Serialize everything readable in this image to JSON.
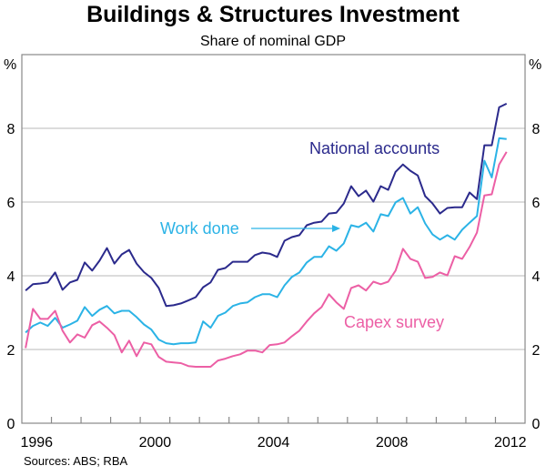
{
  "chart_data": {
    "type": "line",
    "title": "Buildings & Structures Investment",
    "subtitle": "Share of nominal GDP",
    "ylabel_left": "%",
    "ylabel_right": "%",
    "source": "Sources: ABS; RBA",
    "xlim": [
      1996,
      2013
    ],
    "ylim": [
      0,
      10
    ],
    "yticks": [
      0,
      2,
      4,
      6,
      8
    ],
    "xtick_labels": [
      "1996",
      "2000",
      "2004",
      "2008",
      "2012"
    ],
    "x_start": 1996.125,
    "x_step": 0.25,
    "grid": true,
    "series": [
      {
        "name": "National accounts",
        "color": "#2b2a8c",
        "values": [
          3.6,
          3.77,
          3.79,
          3.82,
          4.09,
          3.62,
          3.82,
          3.89,
          4.36,
          4.14,
          4.41,
          4.75,
          4.33,
          4.58,
          4.7,
          4.33,
          4.1,
          3.94,
          3.67,
          3.18,
          3.2,
          3.25,
          3.33,
          3.42,
          3.69,
          3.82,
          4.16,
          4.21,
          4.38,
          4.38,
          4.38,
          4.56,
          4.63,
          4.6,
          4.51,
          4.95,
          5.05,
          5.1,
          5.37,
          5.44,
          5.47,
          5.69,
          5.71,
          5.96,
          6.43,
          6.16,
          6.31,
          6.01,
          6.43,
          6.33,
          6.82,
          7.02,
          6.85,
          6.72,
          6.16,
          5.96,
          5.69,
          5.84,
          5.86,
          5.86,
          6.26,
          6.08,
          7.54,
          7.54,
          8.57,
          8.67
        ]
      },
      {
        "name": "Work done",
        "color": "#2bb3e6",
        "values": [
          2.46,
          2.64,
          2.73,
          2.64,
          2.86,
          2.59,
          2.68,
          2.78,
          3.15,
          2.91,
          3.08,
          3.18,
          2.98,
          3.05,
          3.05,
          2.88,
          2.68,
          2.54,
          2.27,
          2.17,
          2.14,
          2.17,
          2.17,
          2.19,
          2.76,
          2.59,
          2.91,
          3.0,
          3.18,
          3.25,
          3.28,
          3.42,
          3.5,
          3.5,
          3.42,
          3.74,
          3.97,
          4.09,
          4.36,
          4.51,
          4.51,
          4.8,
          4.68,
          4.88,
          5.37,
          5.32,
          5.44,
          5.2,
          5.67,
          5.62,
          5.99,
          6.11,
          5.69,
          5.86,
          5.42,
          5.12,
          4.98,
          5.1,
          4.98,
          5.25,
          5.44,
          5.62,
          7.12,
          6.67,
          7.73,
          7.71
        ]
      },
      {
        "name": "Capex survey",
        "color": "#ec5fa5",
        "values": [
          2.04,
          3.1,
          2.83,
          2.83,
          3.05,
          2.51,
          2.19,
          2.41,
          2.32,
          2.66,
          2.76,
          2.59,
          2.39,
          1.92,
          2.24,
          1.82,
          2.19,
          2.14,
          1.8,
          1.67,
          1.65,
          1.63,
          1.55,
          1.53,
          1.53,
          1.53,
          1.7,
          1.75,
          1.82,
          1.87,
          1.97,
          1.97,
          1.92,
          2.12,
          2.14,
          2.19,
          2.36,
          2.51,
          2.76,
          2.98,
          3.15,
          3.5,
          3.28,
          3.1,
          3.67,
          3.74,
          3.6,
          3.84,
          3.77,
          3.84,
          4.14,
          4.73,
          4.46,
          4.38,
          3.94,
          3.97,
          4.09,
          4.01,
          4.53,
          4.46,
          4.78,
          5.17,
          6.18,
          6.21,
          7.02,
          7.36
        ]
      }
    ]
  }
}
